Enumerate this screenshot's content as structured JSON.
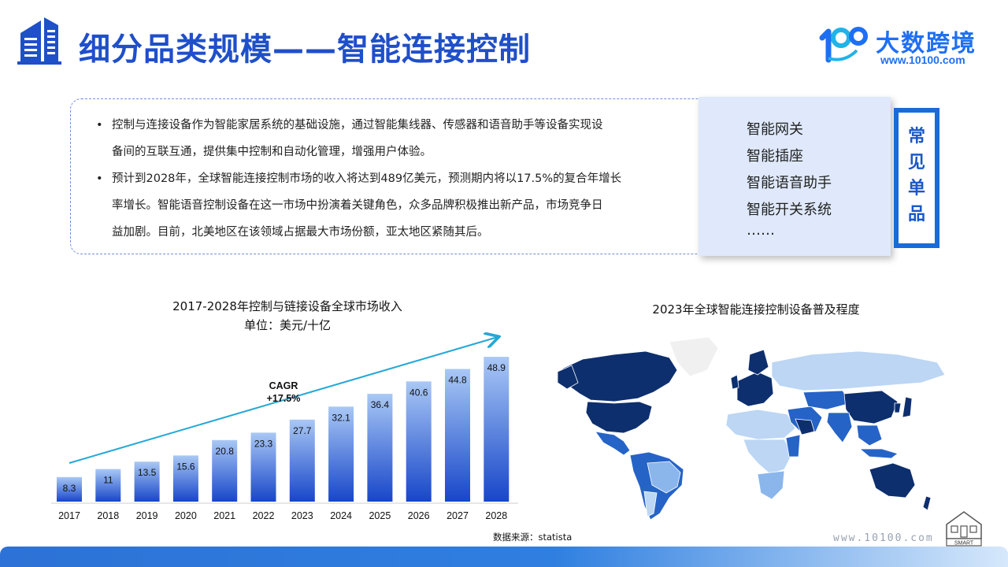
{
  "header": {
    "title": "细分品类规模——智能连接控制"
  },
  "brand": {
    "name": "大数跨境",
    "url": "www.10100.com",
    "logo_text": "10100"
  },
  "intro": {
    "bullets": [
      "控制与连接设备作为智能家居系统的基础设施，通过智能集线器、传感器和语音助手等设备实现设备间的互联互通，提供集中控制和自动化管理，增强用户体验。",
      "预计到2028年，全球智能连接控制市场的收入将达到489亿美元，预测期内将以17.5%的复合年增长率增长。智能语音控制设备在这一市场中扮演着关键角色，众多品牌积极推出新产品，市场竞争日益加剧。目前，北美地区在该领域占据最大市场份额，亚太地区紧随其后。"
    ],
    "bullet_lines": [
      [
        "控制与连接设备作为智能家居系统的基础设施，通过智能集线器、传感器和语音助手等设备实现设",
        "备间的互联互通，提供集中控制和自动化管理，增强用户体验。"
      ],
      [
        "预计到2028年，全球智能连接控制市场的收入将达到489亿美元，预测期内将以17.5%的复合年增长",
        "率增长。智能语音控制设备在这一市场中扮演着关键角色，众多品牌积极推出新产品，市场竞争日",
        "益加剧。目前，北美地区在该领域占据最大市场份额，亚太地区紧随其后。"
      ]
    ],
    "bullet_symbol": "•"
  },
  "common_items": {
    "label": "常见单品",
    "items": [
      "智能网关",
      "智能插座",
      "智能语音助手",
      "智能开关系统",
      "……"
    ]
  },
  "chart_data": {
    "type": "bar",
    "title": "2017-2028年控制与链接设备全球市场收入",
    "subtitle": "单位：美元/十亿",
    "categories": [
      "2017",
      "2018",
      "2019",
      "2020",
      "2021",
      "2022",
      "2023",
      "2024",
      "2025",
      "2026",
      "2027",
      "2028"
    ],
    "values": [
      8.3,
      11,
      13.5,
      15.6,
      20.8,
      23.3,
      27.7,
      32.1,
      36.4,
      40.6,
      44.8,
      48.9
    ],
    "value_labels": [
      "8.3",
      "11",
      "13.5",
      "15.6",
      "20.8",
      "23.3",
      "27.7",
      "32.1",
      "36.4",
      "40.6",
      "44.8",
      "48.9"
    ],
    "ylim": [
      0,
      50
    ],
    "grid": false,
    "annotation": {
      "line1": "CAGR",
      "line2": "+17.5%"
    },
    "source": "数据来源：statista",
    "colors": {
      "bar_top": "#a9c8f5",
      "bar_bottom": "#1746c9",
      "trend": "#23a8d6"
    }
  },
  "map": {
    "title": "2023年全球智能连接控制设备普及程度",
    "colors": {
      "high": "#0d2f6e",
      "mid": "#2563c7",
      "low": "#8ab6ec",
      "lower": "#bcd6f4",
      "none": "#f0f0f0"
    }
  },
  "footer": {
    "url": "www.10100.com",
    "logo_text": "SMART"
  },
  "icons": [
    "building-icon",
    "brand-logo-icon",
    "smart-home-icon"
  ]
}
